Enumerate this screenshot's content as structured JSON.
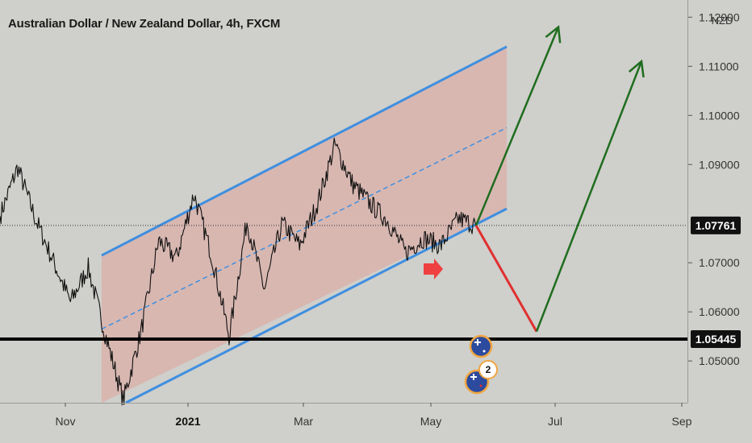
{
  "title": "Australian Dollar / New Zealand Dollar, 4h, FXCM",
  "currency": "NZD",
  "colors": {
    "background": "#cfcfcb",
    "channel_line": "#3f8fe0",
    "channel_fill": "#e0a49c",
    "bullish_arrow": "#1f6d1f",
    "bearish_arrow": "#e03030",
    "support_line": "#000000",
    "price_tag": "#111111"
  },
  "chart_data": {
    "type": "line",
    "symbol": "AUDNZD",
    "timeframe": "4h",
    "x_ticks": [
      "Nov",
      "2021",
      "Mar",
      "May",
      "Jul",
      "Sep"
    ],
    "y_ticks": [
      "1.05000",
      "1.06000",
      "1.07000",
      "1.09000",
      "1.10000",
      "1.11000",
      "1.12000"
    ],
    "ylim": [
      1.0415,
      1.1235
    ],
    "last_price": "1.07761",
    "support_level": "1.05445",
    "series": [
      {
        "values": [
          1.0795,
          1.0895,
          1.079,
          1.0705,
          1.062,
          1.069,
          1.055,
          1.042,
          1.056,
          1.0745,
          1.071,
          1.084,
          1.0715,
          1.055,
          1.0785,
          1.0645,
          1.078,
          1.0735,
          1.082,
          1.094,
          1.086,
          1.082,
          1.0785,
          1.072,
          1.075,
          1.0735,
          1.079,
          1.0776
        ]
      }
    ],
    "annotations": {
      "channel_upper": [
        1.0715,
        1.114
      ],
      "channel_mid": [
        1.0565,
        1.0975
      ],
      "channel_lower": [
        1.0415,
        1.081
      ],
      "projection_down": [
        1.0776,
        1.056
      ],
      "projection_up_1": [
        1.0776,
        1.118
      ],
      "projection_up_2": [
        1.056,
        1.111
      ]
    }
  }
}
